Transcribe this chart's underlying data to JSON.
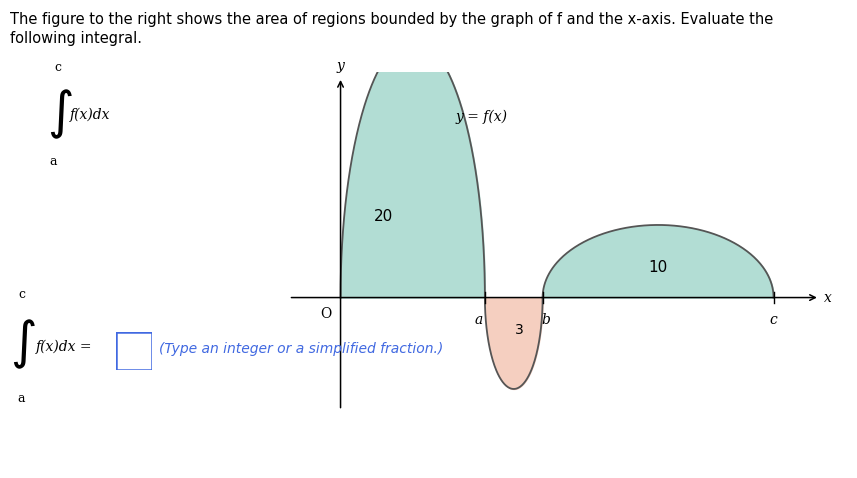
{
  "title_line1": "The figure to the right shows the area of regions bounded by the graph of f and the x-axis. Evaluate the",
  "title_line2": "following integral.",
  "title_color": "#000000",
  "title_fontsize": 10.5,
  "background_color": "#ffffff",
  "teal_color": "#b2ddd4",
  "pink_color": "#f5cfc0",
  "curve_color": "#555555",
  "area1_label": "20",
  "area2_label": "10",
  "area3_label": "3",
  "label_a": "a",
  "label_b": "b",
  "label_c": "c",
  "label_O": "O",
  "label_x": "x",
  "label_y": "y",
  "label_fx": "y = f(x)",
  "box_color": "#4169e1",
  "box_text": "(Type an integer or a simplified fraction.)",
  "fig_width": 8.57,
  "fig_height": 4.78,
  "dpi": 100
}
